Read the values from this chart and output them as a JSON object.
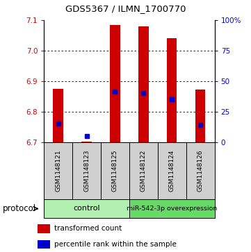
{
  "title": "GDS5367 / ILMN_1700770",
  "samples": [
    "GSM1148121",
    "GSM1148123",
    "GSM1148125",
    "GSM1148122",
    "GSM1148124",
    "GSM1148126"
  ],
  "bar_bottoms": [
    6.7,
    6.7,
    6.7,
    6.7,
    6.7,
    6.7
  ],
  "bar_tops": [
    6.875,
    6.703,
    7.085,
    7.08,
    7.04,
    6.872
  ],
  "blue_vals": [
    6.762,
    6.72,
    6.865,
    6.862,
    6.842,
    6.757
  ],
  "ylim": [
    6.7,
    7.1
  ],
  "yticks_left": [
    6.7,
    6.8,
    6.9,
    7.0,
    7.1
  ],
  "yticks_right": [
    0,
    25,
    50,
    75,
    100
  ],
  "bar_color": "#cc0000",
  "blue_color": "#0000cc",
  "control_label": "control",
  "mir_label": "miR-542-3p overexpression",
  "legend_red_label": "transformed count",
  "legend_blue_label": "percentile rank within the sample",
  "protocol_label": "protocol",
  "bar_width": 0.35,
  "group_colors": [
    "#90ee90",
    "#66cc66"
  ],
  "sample_bg": "#d0d0d0"
}
